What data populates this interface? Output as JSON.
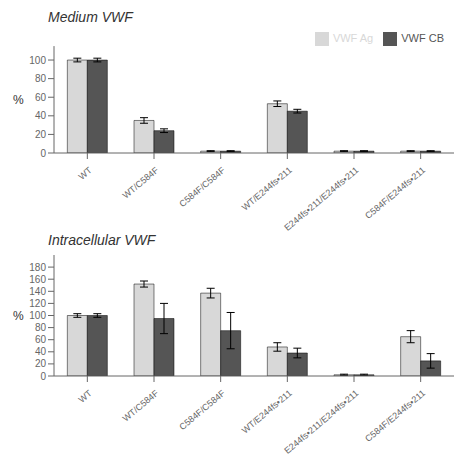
{
  "chart_data": [
    {
      "type": "bar",
      "title": "Medium VWF",
      "ylabel": "%",
      "categories": [
        "WT",
        "WT/C584F",
        "C584F/C584F",
        "WT/E244fs•211",
        "E244fs•211/E244fs•211",
        "C584F/E244fs•211"
      ],
      "series": [
        {
          "name": "VWF Ag",
          "color": "#d8d8d8",
          "values": [
            100,
            35,
            2,
            53,
            2,
            2
          ],
          "errors": [
            2,
            3,
            0.5,
            3,
            0.5,
            0.5
          ]
        },
        {
          "name": "VWF CB",
          "color": "#555555",
          "values": [
            100,
            24,
            2,
            45,
            2,
            2
          ],
          "errors": [
            2,
            2,
            0.5,
            2,
            0.5,
            0.5
          ]
        }
      ],
      "ylim": [
        0,
        115
      ],
      "yticks": [
        0,
        20,
        40,
        60,
        80,
        100
      ],
      "legend": "upper right"
    },
    {
      "type": "bar",
      "title": "Intracellular VWF",
      "ylabel": "%",
      "categories": [
        "WT",
        "WT/C584F",
        "C584F/C584F",
        "WT/E244fs•211",
        "E244fs•211/E244fs•211",
        "C584F/E244fs•211"
      ],
      "series": [
        {
          "color": "#d8d8d8",
          "values": [
            100,
            152,
            137,
            48,
            2,
            65
          ],
          "errors": [
            3,
            5,
            8,
            7,
            1,
            10
          ]
        },
        {
          "color": "#555555",
          "values": [
            100,
            95,
            75,
            38,
            2,
            25
          ],
          "errors": [
            3,
            25,
            30,
            8,
            1,
            12
          ]
        }
      ],
      "ylim": [
        0,
        200
      ],
      "yticks": [
        0,
        20,
        40,
        60,
        80,
        100,
        120,
        140,
        160,
        180
      ]
    }
  ]
}
